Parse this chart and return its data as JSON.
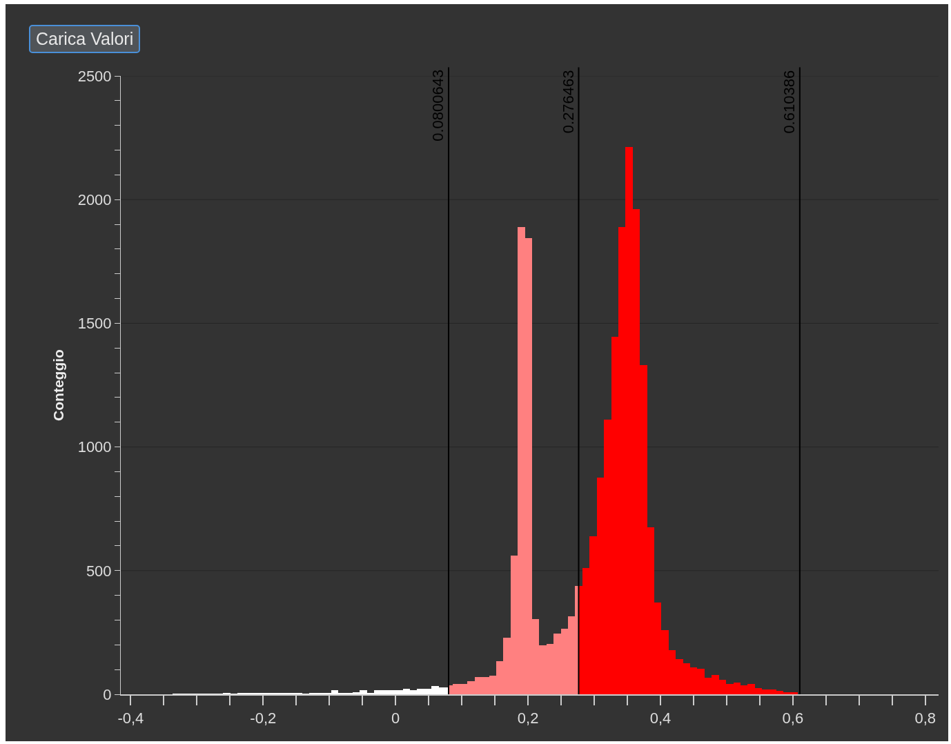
{
  "chart_data": {
    "type": "histogram",
    "ylabel": "Conteggio",
    "annotations": [
      "Carica Valori"
    ],
    "bins": [
      -0.33635,
      -0.3255,
      -0.31465,
      -0.3038,
      -0.29295,
      -0.2821,
      -0.27125,
      -0.2604,
      -0.24955,
      -0.2387,
      -0.22785,
      -0.217,
      -0.20615,
      -0.1953,
      -0.18445,
      -0.1736,
      -0.16275,
      -0.1519,
      -0.14105,
      -0.1302,
      -0.11935,
      -0.1085,
      -0.09765,
      -0.0868,
      -0.07595,
      -0.0651,
      -0.05425,
      -0.0434,
      -0.03255,
      -0.0217,
      -0.01085,
      0,
      0.01085,
      0.0217,
      0.03255,
      0.0434,
      0.05425,
      0.0651,
      0.07595,
      0.0800643,
      0.0868,
      0.09765,
      0.1085,
      0.11935,
      0.1302,
      0.14105,
      0.1519,
      0.16275,
      0.1736,
      0.18445,
      0.1953,
      0.20615,
      0.217,
      0.22785,
      0.2387,
      0.24955,
      0.2604,
      0.27125,
      0.276463,
      0.2821,
      0.29295,
      0.3038,
      0.31465,
      0.3255,
      0.33635,
      0.3472,
      0.35805,
      0.3689,
      0.37975,
      0.3906,
      0.40145,
      0.4123,
      0.42315,
      0.434,
      0.44485,
      0.4557,
      0.46655,
      0.4774,
      0.48825,
      0.4991,
      0.50995,
      0.5208,
      0.53165,
      0.5425,
      0.55335,
      0.5642,
      0.57505,
      0.5859,
      0.59675,
      0.6076
    ],
    "values": [
      1,
      1,
      1,
      1,
      1,
      1,
      1,
      5,
      1,
      5,
      5,
      5,
      5,
      5,
      5,
      5,
      5,
      5,
      1,
      5,
      5,
      5,
      16,
      5,
      5,
      9,
      16,
      5,
      16,
      16,
      16,
      16,
      22,
      16,
      22,
      22,
      33,
      28,
      28,
      36,
      41,
      41,
      52,
      70,
      70,
      76,
      135,
      228,
      562,
      1888,
      1843,
      304,
      199,
      205,
      246,
      264,
      316,
      439,
      439,
      511,
      640,
      876,
      1110,
      1444,
      1888,
      2212,
      1961,
      1332,
      676,
      372,
      260,
      178,
      143,
      125,
      108,
      102,
      66,
      79,
      60,
      43,
      48,
      37,
      42,
      24,
      20,
      20,
      13,
      8,
      8
    ],
    "colors": [
      "#ffffff",
      "#ffffff",
      "#ffffff",
      "#ffffff",
      "#ffffff",
      "#ffffff",
      "#ffffff",
      "#ffffff",
      "#ffffff",
      "#ffffff",
      "#ffffff",
      "#ffffff",
      "#ffffff",
      "#ffffff",
      "#ffffff",
      "#ffffff",
      "#ffffff",
      "#ffffff",
      "#ffffff",
      "#ffffff",
      "#ffffff",
      "#ffffff",
      "#ffffff",
      "#ffffff",
      "#ffffff",
      "#ffffff",
      "#ffffff",
      "#ffffff",
      "#ffffff",
      "#ffffff",
      "#ffffff",
      "#ffffff",
      "#ffffff",
      "#ffffff",
      "#ffffff",
      "#ffffff",
      "#ffffff",
      "#ffffff",
      "#ffffff",
      "#ff8080",
      "#ff8080",
      "#ff8080",
      "#ff8080",
      "#ff8080",
      "#ff8080",
      "#ff8080",
      "#ff8080",
      "#ff8080",
      "#ff8080",
      "#ff8080",
      "#ff8080",
      "#ff8080",
      "#ff8080",
      "#ff8080",
      "#ff8080",
      "#ff8080",
      "#ff8080",
      "#ff8080",
      "#ff0000",
      "#ff0000",
      "#ff0000",
      "#ff0000",
      "#ff0000",
      "#ff0000",
      "#ff0000",
      "#ff0000",
      "#ff0000",
      "#ff0000",
      "#ff0000",
      "#ff0000",
      "#ff0000",
      "#ff0000",
      "#ff0000",
      "#ff0000",
      "#ff0000",
      "#ff0000",
      "#ff0000",
      "#ff0000",
      "#ff0000",
      "#ff0000",
      "#ff0000",
      "#ff0000",
      "#ff0000",
      "#ff0000",
      "#ff0000",
      "#ff0000",
      "#ff0000",
      "#ff0000",
      "#ff0000"
    ],
    "xlim": [
      -0.415,
      0.82
    ],
    "xticks": [
      {
        "value": -0.4,
        "label": "-0,4"
      },
      {
        "value": -0.35,
        "label": null
      },
      {
        "value": -0.3,
        "label": null
      },
      {
        "value": -0.25,
        "label": null
      },
      {
        "value": -0.2,
        "label": "-0,2"
      },
      {
        "value": -0.15,
        "label": null
      },
      {
        "value": -0.1,
        "label": null
      },
      {
        "value": -0.05,
        "label": null
      },
      0,
      {
        "value": 0.05,
        "label": null
      },
      {
        "value": 0.1,
        "label": null
      },
      {
        "value": 0.15,
        "label": null
      },
      {
        "value": 0.2,
        "label": "0,2"
      },
      {
        "value": 0.25,
        "label": null
      },
      {
        "value": 0.3,
        "label": null
      },
      {
        "value": 0.35,
        "label": null
      },
      {
        "value": 0.4,
        "label": "0,4"
      },
      {
        "value": 0.45,
        "label": null
      },
      {
        "value": 0.5,
        "label": null
      },
      {
        "value": 0.55,
        "label": null
      },
      {
        "value": 0.6,
        "label": "0,6"
      },
      {
        "value": 0.65,
        "label": null
      },
      {
        "value": 0.7,
        "label": null
      },
      {
        "value": 0.75,
        "label": null
      },
      {
        "value": 0.8,
        "label": "0,8"
      }
    ],
    "ylim": [
      0,
      2500
    ],
    "yticks": [
      0,
      {
        "value": 100,
        "label": null
      },
      {
        "value": 200,
        "label": null
      },
      {
        "value": 300,
        "label": null
      },
      {
        "value": 400,
        "label": null
      },
      500,
      {
        "value": 600,
        "label": null
      },
      {
        "value": 700,
        "label": null
      },
      {
        "value": 800,
        "label": null
      },
      {
        "value": 900,
        "label": null
      },
      1000,
      {
        "value": 1100,
        "label": null
      },
      {
        "value": 1200,
        "label": null
      },
      {
        "value": 1300,
        "label": null
      },
      {
        "value": 1400,
        "label": null
      },
      1500,
      {
        "value": 1600,
        "label": null
      },
      {
        "value": 1700,
        "label": null
      },
      {
        "value": 1800,
        "label": null
      },
      {
        "value": 1900,
        "label": null
      },
      2000,
      {
        "value": 2100,
        "label": null
      },
      {
        "value": 2200,
        "label": null
      },
      {
        "value": 2300,
        "label": null
      },
      {
        "value": 2400,
        "label": null
      },
      2500
    ],
    "grid": "y",
    "ref_lines": [
      {
        "axis": "x",
        "value": 0.0800643,
        "label": "0.0800643",
        "color": "#000000"
      },
      {
        "axis": "x",
        "value": 0.276463,
        "label": "0.276463",
        "color": "#000000"
      },
      {
        "axis": "x",
        "value": 0.610386,
        "label": "0.610386",
        "color": "#000000"
      }
    ]
  }
}
